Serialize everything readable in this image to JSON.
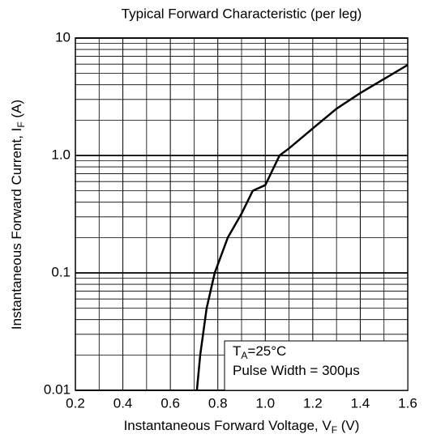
{
  "chart_data": {
    "type": "line",
    "title": "Typical Forward Characteristic (per leg)",
    "x_label": [
      "Instantaneous Forward Voltage, V",
      "F",
      " (V)"
    ],
    "y_label": [
      "Instantaneous Forward Current, I",
      "F",
      " (A)"
    ],
    "log_y": true,
    "grid": true,
    "xlim": [
      0.2,
      1.6
    ],
    "xticks": [
      0.2,
      0.4,
      0.6,
      0.8,
      {
        "value": 1,
        "label": "1.0"
      },
      1.2,
      1.4,
      1.6
    ],
    "x_minor_ticks": [
      0.3,
      0.5,
      0.7,
      0.9,
      1.1,
      1.3,
      1.5
    ],
    "ylim": [
      0.01,
      10
    ],
    "yticks": [
      0.01,
      0.1,
      {
        "value": 1,
        "label": "1.0"
      },
      10
    ],
    "y_minor_ticks": [
      0.02,
      0.03,
      0.04,
      0.05,
      0.06,
      0.07,
      0.08,
      0.09,
      0.2,
      0.3,
      0.4,
      0.5,
      0.6,
      0.7,
      0.8,
      0.9,
      2,
      3,
      4,
      5,
      6,
      7,
      8,
      9
    ],
    "series": [
      {
        "color": "#000000",
        "x": [
          0.712,
          0.726,
          0.753,
          0.787,
          0.842,
          0.9,
          0.947,
          1.0,
          1.06,
          1.1,
          1.2,
          1.3,
          1.4,
          1.6
        ],
        "values": [
          0.01,
          0.02,
          0.05,
          0.1,
          0.2,
          0.32,
          0.5,
          0.56,
          1.0,
          1.15,
          1.7,
          2.5,
          3.4,
          5.9
        ]
      }
    ],
    "annotation": [
      [
        "T",
        "A",
        "=25°C"
      ],
      [
        "Pulse Width = 300μs"
      ]
    ]
  }
}
